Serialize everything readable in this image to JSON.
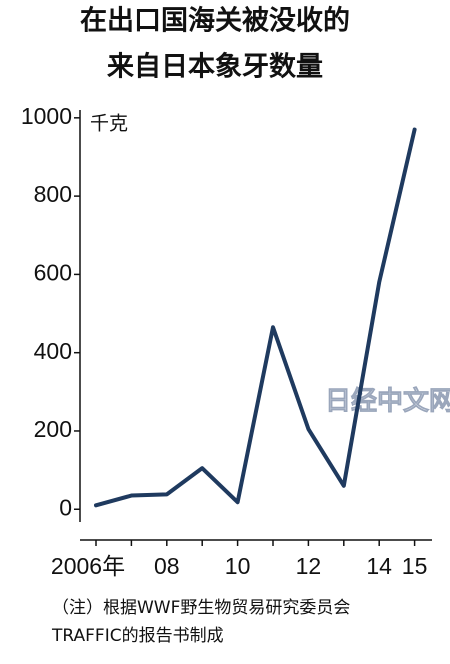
{
  "chart_data": {
    "type": "line",
    "title": [
      "在出口国海关被没收的",
      "来自日本象牙数量"
    ],
    "y_unit": "千克",
    "categories": [
      "2006年",
      null,
      "08",
      null,
      "10",
      null,
      "12",
      null,
      "14",
      "15"
    ],
    "series": [
      {
        "name": "象牙数量",
        "color": "#1f3a5f",
        "values": [
          10,
          35,
          38,
          105,
          18,
          465,
          205,
          60,
          580,
          970
        ]
      }
    ],
    "ylim": [
      -30,
      1020
    ],
    "yticks": [
      0,
      200,
      400,
      600,
      800,
      1000
    ],
    "grid": false,
    "watermark": "日经中文网",
    "notes": [
      "（注）根据WWF野生物贸易研究委员会",
      "TRAFFIC的报告书制成"
    ]
  }
}
